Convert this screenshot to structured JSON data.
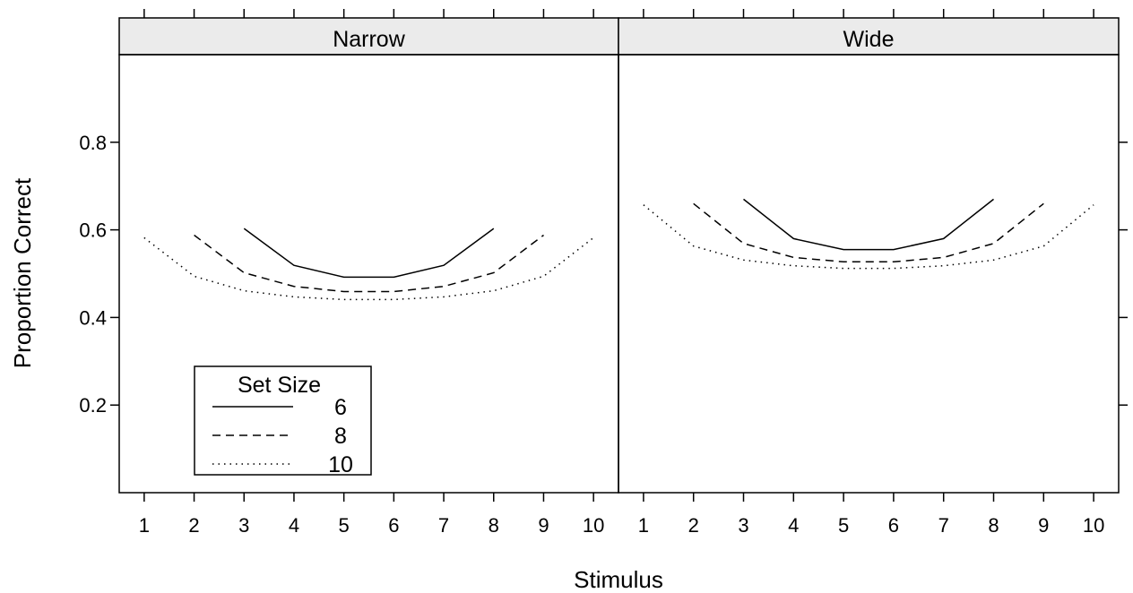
{
  "chart_data": {
    "type": "line",
    "xlabel": "Stimulus",
    "ylabel": "Proportion Correct",
    "xlim": [
      0.5,
      10.5
    ],
    "ylim": [
      0.0,
      1.0
    ],
    "x_ticks": [
      1,
      2,
      3,
      4,
      5,
      6,
      7,
      8,
      9,
      10
    ],
    "y_ticks": [
      0.2,
      0.4,
      0.6,
      0.8
    ],
    "y_tick_labels": [
      "0.2",
      "0.4",
      "0.6",
      "0.8"
    ],
    "legend": {
      "title": "Set Size",
      "placement": "bottom-left inside Narrow panel",
      "entries": [
        {
          "label": "6",
          "line_style": "solid"
        },
        {
          "label": "8",
          "line_style": "dashed"
        },
        {
          "label": "10",
          "line_style": "dotted"
        }
      ]
    },
    "panels": [
      {
        "strip_label": "Narrow",
        "series": [
          {
            "name": "6",
            "line_style": "solid",
            "x": [
              3,
              4,
              5,
              6,
              7,
              8
            ],
            "y": [
              0.603,
              0.519,
              0.492,
              0.492,
              0.519,
              0.603
            ]
          },
          {
            "name": "8",
            "line_style": "dashed",
            "x": [
              2,
              3,
              4,
              5,
              6,
              7,
              8,
              9
            ],
            "y": [
              0.588,
              0.502,
              0.471,
              0.459,
              0.459,
              0.471,
              0.502,
              0.588
            ]
          },
          {
            "name": "10",
            "line_style": "dotted",
            "x": [
              1,
              2,
              3,
              4,
              5,
              6,
              7,
              8,
              9,
              10
            ],
            "y": [
              0.582,
              0.494,
              0.461,
              0.447,
              0.441,
              0.441,
              0.447,
              0.461,
              0.494,
              0.582
            ]
          }
        ]
      },
      {
        "strip_label": "Wide",
        "series": [
          {
            "name": "6",
            "line_style": "solid",
            "x": [
              3,
              4,
              5,
              6,
              7,
              8
            ],
            "y": [
              0.67,
              0.58,
              0.555,
              0.555,
              0.58,
              0.67
            ]
          },
          {
            "name": "8",
            "line_style": "dashed",
            "x": [
              2,
              3,
              4,
              5,
              6,
              7,
              8,
              9
            ],
            "y": [
              0.66,
              0.569,
              0.537,
              0.527,
              0.527,
              0.537,
              0.569,
              0.66
            ]
          },
          {
            "name": "10",
            "line_style": "dotted",
            "x": [
              1,
              2,
              3,
              4,
              5,
              6,
              7,
              8,
              9,
              10
            ],
            "y": [
              0.657,
              0.563,
              0.531,
              0.518,
              0.512,
              0.512,
              0.518,
              0.531,
              0.563,
              0.657
            ]
          }
        ]
      }
    ]
  }
}
